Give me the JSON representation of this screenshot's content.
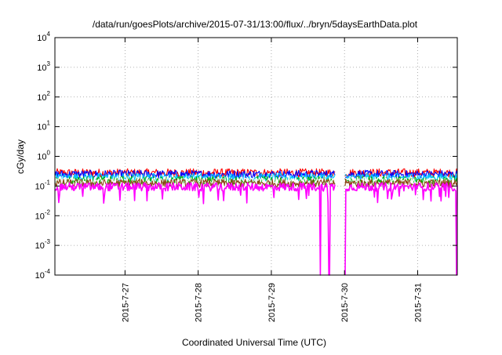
{
  "chart_data": {
    "type": "line",
    "title": "/data/run/goesPlots/archive/2015-07-31/13:00/flux/../bryn/5daysEarthData.plot",
    "xlabel": "Coordinated Universal Time (UTC)",
    "ylabel": "cGy/day",
    "yscale": "log",
    "ylim": [
      0.0001,
      10000
    ],
    "xlim": [
      "2015-07-26 01:00",
      "2015-07-31 13:00"
    ],
    "y_ticks": [
      {
        "value": 0.0001,
        "mantissa": "10",
        "exp": "-4"
      },
      {
        "value": 0.001,
        "mantissa": "10",
        "exp": "-3"
      },
      {
        "value": 0.01,
        "mantissa": "10",
        "exp": "-2"
      },
      {
        "value": 0.1,
        "mantissa": "10",
        "exp": "-1"
      },
      {
        "value": 1,
        "mantissa": "10",
        "exp": "0"
      },
      {
        "value": 10,
        "mantissa": "10",
        "exp": "1"
      },
      {
        "value": 100,
        "mantissa": "10",
        "exp": "2"
      },
      {
        "value": 1000,
        "mantissa": "10",
        "exp": "3"
      },
      {
        "value": 10000,
        "mantissa": "10",
        "exp": "4"
      }
    ],
    "x_ticks": [
      "2015-7-27",
      "2015-7-28",
      "2015-7-29",
      "2015-7-30",
      "2015-7-31"
    ],
    "grid": true,
    "data_gap": [
      "2015-07-29 21:00",
      "2015-07-30 00:00"
    ],
    "series": [
      {
        "color": "#ff0000",
        "level": 0.27
      },
      {
        "color": "#0000ff",
        "level": 0.24
      },
      {
        "color": "#00c8ff",
        "level": 0.19
      },
      {
        "color": "#00b000",
        "level": 0.15
      },
      {
        "color": "#ffffff",
        "level": 0.14
      },
      {
        "color": "#8b4513",
        "level": 0.12
      },
      {
        "color": "#ff00ff",
        "level": 0.09
      }
    ]
  }
}
